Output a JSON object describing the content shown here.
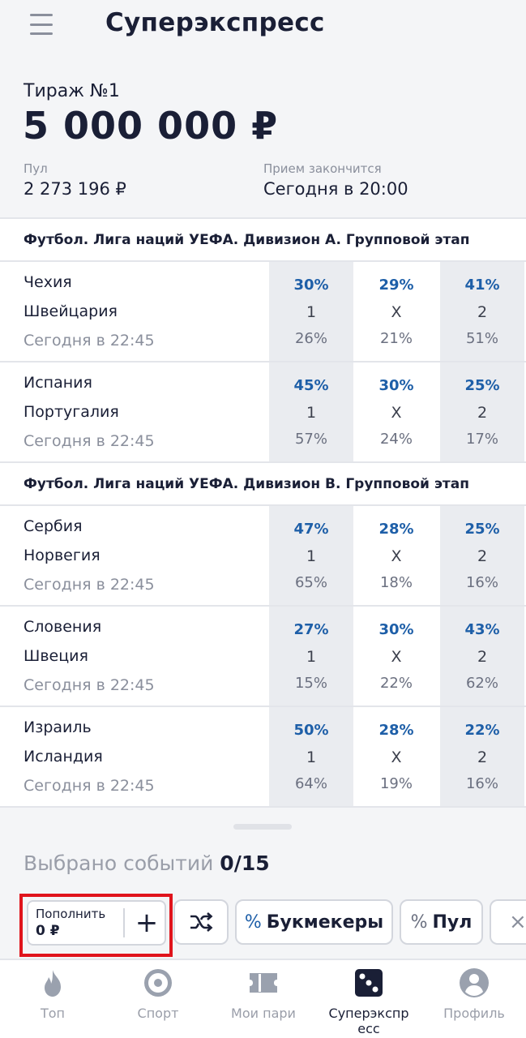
{
  "header": {
    "title": "Суперэкспресс"
  },
  "draw": {
    "title": "Тираж №1",
    "jackpot": "5 000 000 ₽",
    "pool_label": "Пул",
    "pool_value": "2 273 196 ₽",
    "deadline_label": "Прием закончится",
    "deadline_value": "Сегодня в 20:00"
  },
  "groups": [
    {
      "title": "Футбол. Лига наций УЕФА. Дивизион A. Групповой этап",
      "matches": [
        {
          "team1": "Чехия",
          "team2": "Швейцария",
          "time": "Сегодня в 22:45",
          "options": [
            {
              "pct": "30%",
              "label": "1",
              "pool": "26%"
            },
            {
              "pct": "29%",
              "label": "X",
              "pool": "21%"
            },
            {
              "pct": "41%",
              "label": "2",
              "pool": "51%"
            }
          ]
        },
        {
          "team1": "Испания",
          "team2": "Португалия",
          "time": "Сегодня в 22:45",
          "options": [
            {
              "pct": "45%",
              "label": "1",
              "pool": "57%"
            },
            {
              "pct": "30%",
              "label": "X",
              "pool": "24%"
            },
            {
              "pct": "25%",
              "label": "2",
              "pool": "17%"
            }
          ]
        }
      ]
    },
    {
      "title": "Футбол. Лига наций УЕФА. Дивизион B. Групповой этап",
      "matches": [
        {
          "team1": "Сербия",
          "team2": "Норвегия",
          "time": "Сегодня в 22:45",
          "options": [
            {
              "pct": "47%",
              "label": "1",
              "pool": "65%"
            },
            {
              "pct": "28%",
              "label": "X",
              "pool": "18%"
            },
            {
              "pct": "25%",
              "label": "2",
              "pool": "16%"
            }
          ]
        },
        {
          "team1": "Словения",
          "team2": "Швеция",
          "time": "Сегодня в 22:45",
          "options": [
            {
              "pct": "27%",
              "label": "1",
              "pool": "15%"
            },
            {
              "pct": "30%",
              "label": "X",
              "pool": "22%"
            },
            {
              "pct": "43%",
              "label": "2",
              "pool": "62%"
            }
          ]
        },
        {
          "team1": "Израиль",
          "team2": "Исландия",
          "time": "Сегодня в 22:45",
          "options": [
            {
              "pct": "50%",
              "label": "1",
              "pool": "64%"
            },
            {
              "pct": "28%",
              "label": "X",
              "pool": "19%"
            },
            {
              "pct": "22%",
              "label": "2",
              "pool": "16%"
            }
          ]
        }
      ]
    }
  ],
  "selection": {
    "label": "Выбрано событий",
    "count": "0/15"
  },
  "toolbar": {
    "topup_label": "Пополнить",
    "topup_value": "0 ₽",
    "topup_plus": "+",
    "bookmakers_pct": "%",
    "bookmakers_label": "Букмекеры",
    "pool_pct": "%",
    "pool_label": "Пул",
    "clear_symbol": "×"
  },
  "tabs": [
    {
      "label": "Топ",
      "icon": "flame-icon"
    },
    {
      "label": "Спорт",
      "icon": "target-icon"
    },
    {
      "label": "Мои пари",
      "icon": "ticket-icon"
    },
    {
      "label": "Суперэкспр\nесс",
      "icon": "dice-icon"
    },
    {
      "label": "Профиль",
      "icon": "user-icon"
    }
  ],
  "colors": {
    "accent": "#1e5fa8",
    "text": "#1a1f36",
    "muted": "#8a8f9c",
    "highlight": "#e0141c"
  }
}
